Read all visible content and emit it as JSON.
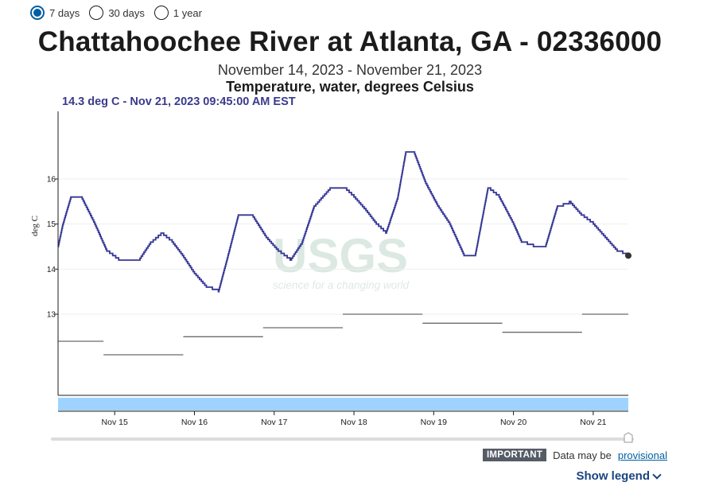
{
  "radios": [
    {
      "label": "7 days",
      "selected": true
    },
    {
      "label": "30 days",
      "selected": false
    },
    {
      "label": "1 year",
      "selected": false
    }
  ],
  "title": "Chattahoochee River at Atlanta, GA - 02336000",
  "date_range": "November 14, 2023 - November 21, 2023",
  "parameter": "Temperature, water, degrees Celsius",
  "tooltip": "14.3 deg C - Nov 21, 2023 09:45:00 AM EST",
  "watermark": {
    "logo": "USGS",
    "tagline": "science for a changing world"
  },
  "notice": {
    "badge": "IMPORTANT",
    "text": "Data may be",
    "link": "provisional"
  },
  "show_legend": "Show legend",
  "colors": {
    "series": "#353795",
    "median": "#6b6b6b",
    "brush": "#9fd3ff",
    "link": "#005ea2"
  },
  "chart_data": {
    "type": "line",
    "ylabel": "deg C",
    "y_ticks": [
      13,
      14,
      15,
      16
    ],
    "ylim": [
      11.2,
      17.5
    ],
    "x_ticks": [
      "Nov 15",
      "Nov 16",
      "Nov 17",
      "Nov 18",
      "Nov 19",
      "Nov 20",
      "Nov 21"
    ],
    "xlim": [
      14.29,
      21.44
    ],
    "series": [
      {
        "x": [
          14.29,
          14.35,
          14.45,
          14.58,
          14.75,
          14.9,
          15.05,
          15.3,
          15.45,
          15.58,
          15.72,
          15.85,
          16.0,
          16.15,
          16.3,
          16.42,
          16.55,
          16.72,
          16.9,
          17.05,
          17.2,
          17.35,
          17.5,
          17.7,
          17.88,
          18.0,
          18.15,
          18.28,
          18.4,
          18.55,
          18.65,
          18.75,
          18.9,
          19.05,
          19.2,
          19.38,
          19.52,
          19.68,
          19.82,
          20.0,
          20.1,
          20.25,
          20.4,
          20.55,
          20.7,
          20.85,
          21.0,
          21.15,
          21.3,
          21.44
        ],
        "y": [
          14.5,
          15.0,
          15.6,
          15.6,
          15.0,
          14.4,
          14.2,
          14.2,
          14.6,
          14.8,
          14.6,
          14.3,
          13.9,
          13.6,
          13.5,
          14.3,
          15.2,
          15.2,
          14.7,
          14.4,
          14.2,
          14.6,
          15.4,
          15.8,
          15.8,
          15.6,
          15.3,
          15.0,
          14.8,
          15.6,
          16.6,
          16.6,
          15.9,
          15.4,
          15.0,
          14.3,
          14.3,
          15.8,
          15.6,
          15.0,
          14.6,
          14.5,
          14.5,
          15.4,
          15.5,
          15.2,
          15.0,
          14.7,
          14.4,
          14.3
        ]
      }
    ],
    "median": [
      {
        "x": [
          14.29,
          14.86
        ],
        "y": 12.4
      },
      {
        "x": [
          14.86,
          15.86
        ],
        "y": 12.1
      },
      {
        "x": [
          15.86,
          16.86
        ],
        "y": 12.5
      },
      {
        "x": [
          16.86,
          17.86
        ],
        "y": 12.7
      },
      {
        "x": [
          17.86,
          18.86
        ],
        "y": 13.0
      },
      {
        "x": [
          18.86,
          19.86
        ],
        "y": 12.8
      },
      {
        "x": [
          19.86,
          20.86
        ],
        "y": 12.6
      },
      {
        "x": [
          20.86,
          21.44
        ],
        "y": 13.0
      }
    ],
    "last_point": {
      "x": 21.44,
      "y": 14.3
    },
    "grid": true
  }
}
